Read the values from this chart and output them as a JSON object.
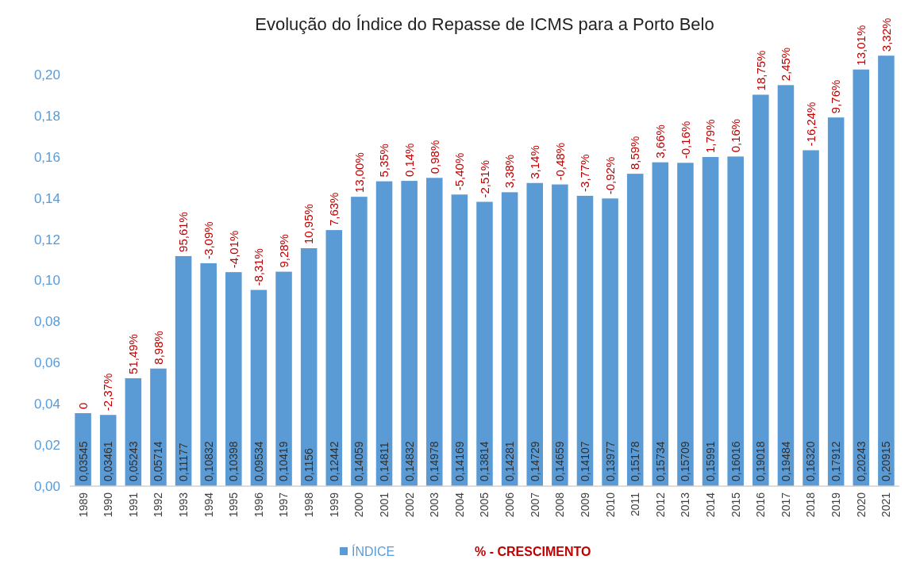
{
  "chart_data": {
    "type": "bar",
    "title": "Evolução do Índice do Repasse de ICMS para a Porto Belo",
    "categories": [
      "1989",
      "1990",
      "1991",
      "1992",
      "1993",
      "1994",
      "1995",
      "1996",
      "1997",
      "1998",
      "1999",
      "2000",
      "2001",
      "2002",
      "2003",
      "2004",
      "2005",
      "2006",
      "2007",
      "2008",
      "2009",
      "2010",
      "2011",
      "2012",
      "2013",
      "2014",
      "2015",
      "2016",
      "2017",
      "2018",
      "2019",
      "2020",
      "2021"
    ],
    "series": [
      {
        "name": "ÍNDICE",
        "color": "#5b9bd5",
        "values": [
          0.03545,
          0.03461,
          0.05243,
          0.05714,
          0.11177,
          0.10832,
          0.10398,
          0.09534,
          0.10419,
          0.1156,
          0.12442,
          0.14059,
          0.14811,
          0.14832,
          0.14978,
          0.14169,
          0.13814,
          0.14281,
          0.14729,
          0.14659,
          0.14107,
          0.13977,
          0.15178,
          0.15734,
          0.15709,
          0.15991,
          0.16016,
          0.19018,
          0.19484,
          0.1632,
          0.17912,
          0.20243,
          0.20915
        ],
        "value_labels": [
          "0,03545",
          "0,03461",
          "0,05243",
          "0,05714",
          "0,11177",
          "0,10832",
          "0,10398",
          "0,09534",
          "0,10419",
          "0,1156",
          "0,12442",
          "0,14059",
          "0,14811",
          "0,14832",
          "0,14978",
          "0,14169",
          "0,13814",
          "0,14281",
          "0,14729",
          "0,14659",
          "0,14107",
          "0,13977",
          "0,15178",
          "0,15734",
          "0,15709",
          "0,15991",
          "0,16016",
          "0,19018",
          "0,19484",
          "0,16320",
          "0,17912",
          "0,20243",
          "0,20915"
        ]
      }
    ],
    "ylim": [
      0,
      0.21
    ],
    "yticks": [
      {
        "value": 0,
        "label": "0,00"
      },
      {
        "value": 0.02,
        "label": "0,02"
      },
      {
        "value": 0.04,
        "label": "0,04"
      },
      {
        "value": 0.06,
        "label": "0,06"
      },
      {
        "value": 0.08,
        "label": "0,08"
      },
      {
        "value": 0.1,
        "label": "0,10"
      },
      {
        "value": 0.12,
        "label": "0,12"
      },
      {
        "value": 0.14,
        "label": "0,14"
      },
      {
        "value": 0.16,
        "label": "0,16"
      },
      {
        "value": 0.18,
        "label": "0,18"
      },
      {
        "value": 0.2,
        "label": "0,20"
      }
    ],
    "legend": "bottom",
    "annotations": [
      "% - CRESCIMENTO",
      {
        "text": "0",
        "x": "1989",
        "y": 0.03545
      },
      {
        "text": "-2,37%",
        "x": "1990",
        "y": 0.03461
      },
      {
        "text": "51,49%",
        "x": "1991",
        "y": 0.05243
      },
      {
        "text": "8,98%",
        "x": "1992",
        "y": 0.05714
      },
      {
        "text": "95,61%",
        "x": "1993",
        "y": 0.11177
      },
      {
        "text": "-3,09%",
        "x": "1994",
        "y": 0.10832
      },
      {
        "text": "-4,01%",
        "x": "1995",
        "y": 0.10398
      },
      {
        "text": "-8,31%",
        "x": "1996",
        "y": 0.09534
      },
      {
        "text": "9,28%",
        "x": "1997",
        "y": 0.10419
      },
      {
        "text": "10,95%",
        "x": "1998",
        "y": 0.1156
      },
      {
        "text": "7,63%",
        "x": "1999",
        "y": 0.12442
      },
      {
        "text": "13,00%",
        "x": "2000",
        "y": 0.14059
      },
      {
        "text": "5,35%",
        "x": "2001",
        "y": 0.14811
      },
      {
        "text": "0,14%",
        "x": "2002",
        "y": 0.14832
      },
      {
        "text": "0,98%",
        "x": "2003",
        "y": 0.14978
      },
      {
        "text": "-5,40%",
        "x": "2004",
        "y": 0.14169
      },
      {
        "text": "-2,51%",
        "x": "2005",
        "y": 0.13814
      },
      {
        "text": "3,38%",
        "x": "2006",
        "y": 0.14281
      },
      {
        "text": "3,14%",
        "x": "2007",
        "y": 0.14729
      },
      {
        "text": "-0,48%",
        "x": "2008",
        "y": 0.14659
      },
      {
        "text": "-3,77%",
        "x": "2009",
        "y": 0.14107
      },
      {
        "text": "-0,92%",
        "x": "2010",
        "y": 0.13977
      },
      {
        "text": "8,59%",
        "x": "2011",
        "y": 0.15178
      },
      {
        "text": "3,66%",
        "x": "2012",
        "y": 0.15734
      },
      {
        "text": "-0,16%",
        "x": "2013",
        "y": 0.15709
      },
      {
        "text": "1,79%",
        "x": "2014",
        "y": 0.15991
      },
      {
        "text": "0,16%",
        "x": "2015",
        "y": 0.16016
      },
      {
        "text": "18,75%",
        "x": "2016",
        "y": 0.19018
      },
      {
        "text": "2,45%",
        "x": "2017",
        "y": 0.19484
      },
      {
        "text": "-16,24%",
        "x": "2018",
        "y": 0.1632
      },
      {
        "text": "9,76%",
        "x": "2019",
        "y": 0.17912
      },
      {
        "text": "13,01%",
        "x": "2020",
        "y": 0.20243
      },
      {
        "text": "3,32%",
        "x": "2021",
        "y": 0.20915
      }
    ]
  }
}
